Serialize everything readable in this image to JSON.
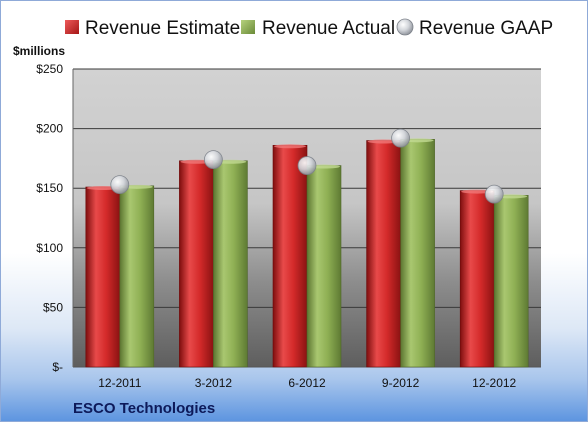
{
  "chart_data": {
    "type": "bar",
    "title": "",
    "company": "ESCO Technologies",
    "y_unit_label": "$millions",
    "categories": [
      "12-2011",
      "3-2012",
      "6-2012",
      "9-2012",
      "12-2012"
    ],
    "series": [
      {
        "name": "Revenue Estimate",
        "kind": "bar",
        "color": "#d42a2a",
        "values": [
          151,
          173,
          186,
          190,
          148
        ]
      },
      {
        "name": "Revenue Actual",
        "kind": "bar",
        "color": "#8fb054",
        "values": [
          152,
          173,
          169,
          191,
          144
        ]
      },
      {
        "name": "Revenue GAAP",
        "kind": "marker",
        "color": "#b8bcc4",
        "values": [
          153,
          174,
          169,
          192,
          145
        ]
      }
    ],
    "ylim": [
      0,
      250
    ],
    "yticks": [
      0,
      50,
      100,
      150,
      200,
      250
    ],
    "ytick_labels": [
      "$-",
      "$50",
      "$100",
      "$150",
      "$200",
      "$250"
    ],
    "grid": true,
    "legend_position": "top"
  }
}
